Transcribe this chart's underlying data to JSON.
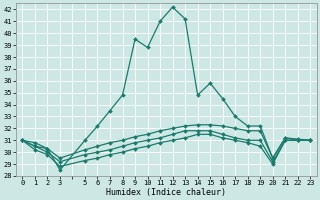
{
  "xlabel": "Humidex (Indice chaleur)",
  "background_color": "#cde8e4",
  "grid_color": "#ffffff",
  "line_color": "#1a7a6e",
  "xlim": [
    -0.5,
    23.5
  ],
  "ylim": [
    28,
    42.5
  ],
  "yticks": [
    28,
    29,
    30,
    31,
    32,
    33,
    34,
    35,
    36,
    37,
    38,
    39,
    40,
    41,
    42
  ],
  "xtick_labels": [
    "0",
    "1",
    "2",
    "3",
    "",
    "5",
    "6",
    "7",
    "8",
    "9",
    "10",
    "11",
    "12",
    "13",
    "14",
    "15",
    "16",
    "17",
    "18",
    "19",
    "20",
    "21",
    "22",
    "23"
  ],
  "xtick_positions": [
    0,
    1,
    2,
    3,
    4,
    5,
    6,
    7,
    8,
    9,
    10,
    11,
    12,
    13,
    14,
    15,
    16,
    17,
    18,
    19,
    20,
    21,
    22,
    23
  ],
  "series": [
    {
      "x": [
        0,
        1,
        2,
        3,
        5,
        6,
        7,
        8,
        9,
        10,
        11,
        12,
        13,
        14,
        15,
        16,
        17,
        18,
        19,
        20,
        21,
        22,
        23
      ],
      "y": [
        31.0,
        30.5,
        30.3,
        28.5,
        31.0,
        32.2,
        33.5,
        34.8,
        39.5,
        38.8,
        41.0,
        42.2,
        41.2,
        34.8,
        35.8,
        34.5,
        33.0,
        32.2,
        32.2,
        29.5,
        31.2,
        31.0,
        31.0
      ]
    },
    {
      "x": [
        0,
        1,
        2,
        3,
        5,
        6,
        7,
        8,
        9,
        10,
        11,
        12,
        13,
        14,
        15,
        16,
        17,
        18,
        19,
        20,
        21,
        22,
        23
      ],
      "y": [
        31.0,
        30.8,
        30.3,
        29.5,
        30.2,
        30.5,
        30.8,
        31.0,
        31.3,
        31.5,
        31.8,
        32.0,
        32.2,
        32.3,
        32.3,
        32.2,
        32.0,
        31.8,
        31.8,
        29.5,
        31.2,
        31.1,
        31.0
      ]
    },
    {
      "x": [
        0,
        1,
        2,
        3,
        5,
        6,
        7,
        8,
        9,
        10,
        11,
        12,
        13,
        14,
        15,
        16,
        17,
        18,
        19,
        20,
        21,
        22,
        23
      ],
      "y": [
        31.0,
        30.5,
        30.0,
        29.2,
        29.8,
        30.0,
        30.2,
        30.5,
        30.8,
        31.0,
        31.2,
        31.5,
        31.8,
        31.8,
        31.8,
        31.5,
        31.2,
        31.0,
        31.0,
        29.2,
        31.0,
        31.0,
        31.0
      ]
    },
    {
      "x": [
        0,
        1,
        2,
        3,
        5,
        6,
        7,
        8,
        9,
        10,
        11,
        12,
        13,
        14,
        15,
        16,
        17,
        18,
        19,
        20,
        21,
        22,
        23
      ],
      "y": [
        31.0,
        30.2,
        29.8,
        28.8,
        29.3,
        29.5,
        29.8,
        30.0,
        30.3,
        30.5,
        30.8,
        31.0,
        31.2,
        31.5,
        31.5,
        31.2,
        31.0,
        30.8,
        30.5,
        29.0,
        31.0,
        31.0,
        31.0
      ]
    }
  ],
  "marker": "D",
  "markersize": 2.0,
  "linewidth": 0.9
}
